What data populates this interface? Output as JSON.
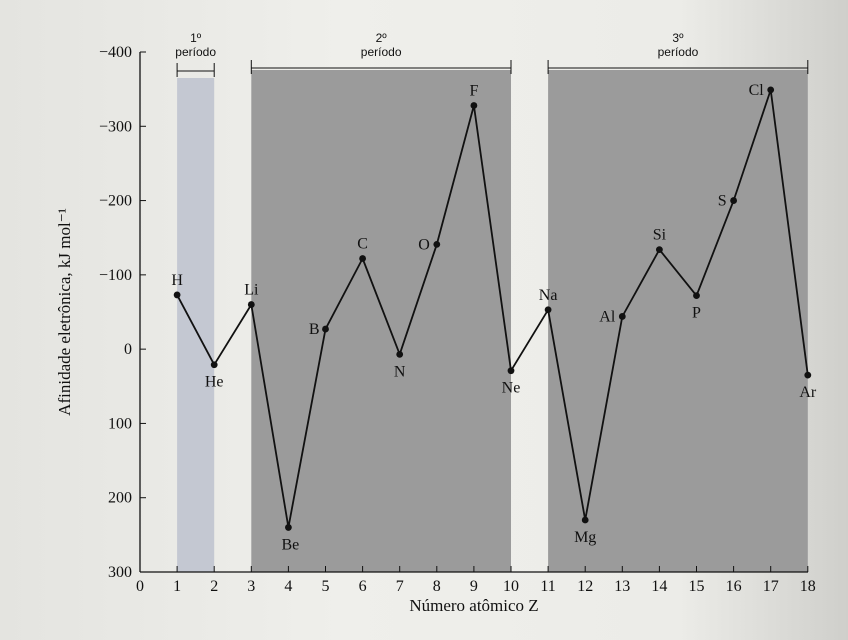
{
  "chart_data": {
    "type": "line",
    "xlabel": "Número atômico Z",
    "ylabel": "Afinidade eletrônica, kJ mol⁻¹",
    "xlim": [
      0,
      18
    ],
    "ylim": [
      -400,
      300
    ],
    "y_inverted": true,
    "x_ticks": [
      "0",
      "1",
      "2",
      "3",
      "4",
      "5",
      "6",
      "7",
      "8",
      "9",
      "10",
      "11",
      "12",
      "13",
      "14",
      "15",
      "16",
      "17",
      "18"
    ],
    "y_ticks": [
      {
        "value": -400,
        "label": "−400"
      },
      {
        "value": -300,
        "label": "−300"
      },
      {
        "value": -200,
        "label": "−200"
      },
      {
        "value": -100,
        "label": "−100"
      },
      {
        "value": 0,
        "label": "0"
      },
      {
        "value": 100,
        "label": "100"
      },
      {
        "value": 200,
        "label": "200"
      },
      {
        "value": 300,
        "label": "300"
      }
    ],
    "periods": [
      {
        "label_top": "1º",
        "label_bottom": "período",
        "z_start": 1,
        "z_end": 2
      },
      {
        "label_top": "2º",
        "label_bottom": "período",
        "z_start": 3,
        "z_end": 10
      },
      {
        "label_top": "3º",
        "label_bottom": "período",
        "z_start": 11,
        "z_end": 18
      }
    ],
    "points": [
      {
        "symbol": "H",
        "z": 1,
        "value": -73
      },
      {
        "symbol": "He",
        "z": 2,
        "value": 21
      },
      {
        "symbol": "Li",
        "z": 3,
        "value": -60
      },
      {
        "symbol": "Be",
        "z": 4,
        "value": 240
      },
      {
        "symbol": "B",
        "z": 5,
        "value": -27
      },
      {
        "symbol": "C",
        "z": 6,
        "value": -122
      },
      {
        "symbol": "N",
        "z": 7,
        "value": 7
      },
      {
        "symbol": "O",
        "z": 8,
        "value": -141
      },
      {
        "symbol": "F",
        "z": 9,
        "value": -328
      },
      {
        "symbol": "Ne",
        "z": 10,
        "value": 29
      },
      {
        "symbol": "Na",
        "z": 11,
        "value": -53
      },
      {
        "symbol": "Mg",
        "z": 12,
        "value": 230
      },
      {
        "symbol": "Al",
        "z": 13,
        "value": -44
      },
      {
        "symbol": "Si",
        "z": 14,
        "value": -134
      },
      {
        "symbol": "P",
        "z": 15,
        "value": -72
      },
      {
        "symbol": "S",
        "z": 16,
        "value": -200
      },
      {
        "symbol": "Cl",
        "z": 17,
        "value": -349
      },
      {
        "symbol": "Ar",
        "z": 18,
        "value": 35
      }
    ]
  }
}
